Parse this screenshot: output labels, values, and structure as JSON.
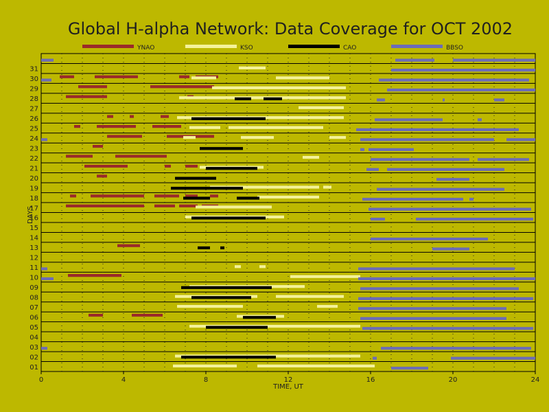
{
  "chart_data": {
    "type": "timeline",
    "title": "Global H-alpha Network: Data Coverage for OCT 2002",
    "xlabel": "TIME, UT",
    "ylabel": "DAYS",
    "xlim": [
      0,
      24
    ],
    "x_ticks": [
      0,
      4,
      8,
      12,
      16,
      20,
      24
    ],
    "day_labels": [
      "01",
      "02",
      "03",
      "04",
      "05",
      "06",
      "07",
      "08",
      "09",
      "10",
      "11",
      "12",
      "13",
      "14",
      "15",
      "16",
      "17",
      "18",
      "19",
      "20",
      "21",
      "22",
      "23",
      "24",
      "25",
      "26",
      "27",
      "28",
      "29",
      "30",
      "31"
    ],
    "grid": true,
    "legend_position": "top",
    "series": [
      {
        "name": "YNAO",
        "color": "#9a2a2a",
        "coverage": {
          "6": [
            [
              2.3,
              3.0
            ],
            [
              4.4,
              5.9
            ]
          ],
          "10": [
            [
              1.3,
              3.9
            ]
          ],
          "13": [
            [
              3.7,
              4.8
            ]
          ],
          "17": [
            [
              1.2,
              5.0
            ],
            [
              5.5,
              6.5
            ],
            [
              6.7,
              7.6
            ],
            [
              7.8,
              8.6
            ]
          ],
          "18": [
            [
              1.4,
              1.7
            ],
            [
              2.4,
              5.0
            ],
            [
              5.5,
              6.7
            ],
            [
              7.0,
              7.6
            ],
            [
              8.2,
              8.6
            ]
          ],
          "20": [
            [
              2.7,
              3.2
            ]
          ],
          "21": [
            [
              2.1,
              4.2
            ],
            [
              6.0,
              6.3
            ],
            [
              7.0,
              7.6
            ]
          ],
          "22": [
            [
              1.2,
              2.5
            ],
            [
              3.6,
              6.1
            ]
          ],
          "23": [
            [
              2.5,
              3.0
            ]
          ],
          "24": [
            [
              3.2,
              4.9
            ],
            [
              6.1,
              8.4
            ]
          ],
          "25": [
            [
              1.6,
              1.9
            ],
            [
              2.7,
              4.6
            ],
            [
              5.4,
              6.8
            ]
          ],
          "26": [
            [
              3.2,
              3.5
            ],
            [
              4.3,
              4.5
            ],
            [
              5.8,
              6.2
            ]
          ],
          "28": [
            [
              1.2,
              3.2
            ],
            [
              7.1,
              7.4
            ]
          ],
          "29": [
            [
              1.8,
              3.2
            ],
            [
              5.3,
              8.4
            ]
          ],
          "30": [
            [
              0.9,
              1.6
            ],
            [
              2.6,
              4.7
            ],
            [
              6.7,
              7.2
            ],
            [
              7.5,
              8.6
            ]
          ]
        }
      },
      {
        "name": "KSO",
        "color": "#f4f29a",
        "coverage": {
          "1": [
            [
              6.4,
              9.5
            ],
            [
              10.5,
              16.2
            ]
          ],
          "2": [
            [
              6.5,
              15.5
            ]
          ],
          "5": [
            [
              7.2,
              15.5
            ]
          ],
          "6": [
            [
              9.5,
              11.8
            ]
          ],
          "7": [
            [
              6.6,
              9.8
            ],
            [
              13.4,
              14.4
            ]
          ],
          "8": [
            [
              6.5,
              10.5
            ],
            [
              11.4,
              14.7
            ]
          ],
          "9": [
            [
              7.2,
              12.8
            ]
          ],
          "10": [
            [
              12.1,
              15.5
            ]
          ],
          "11": [
            [
              9.4,
              9.7
            ],
            [
              10.6,
              10.9
            ]
          ],
          "16": [
            [
              7.0,
              11.8
            ]
          ],
          "17": [
            [
              7.5,
              11.2
            ]
          ],
          "18": [
            [
              10.5,
              13.5
            ]
          ],
          "19": [
            [
              8.2,
              13.5
            ],
            [
              13.7,
              14.1
            ]
          ],
          "21": [
            [
              7.7,
              10.8
            ]
          ],
          "22": [
            [
              12.7,
              13.5
            ]
          ],
          "24": [
            [
              6.9,
              7.5
            ],
            [
              9.7,
              11.3
            ],
            [
              14.0,
              14.8
            ]
          ],
          "25": [
            [
              7.2,
              8.7
            ],
            [
              9.1,
              13.7
            ]
          ],
          "26": [
            [
              6.6,
              14.7
            ]
          ],
          "27": [
            [
              12.5,
              14.7
            ]
          ],
          "28": [
            [
              6.7,
              14.8
            ]
          ],
          "29": [
            [
              8.3,
              14.8
            ]
          ],
          "30": [
            [
              7.3,
              8.5
            ],
            [
              11.4,
              14.0
            ]
          ],
          "31": [
            [
              9.6,
              10.9
            ]
          ]
        }
      },
      {
        "name": "CAO",
        "color": "#000000",
        "coverage": {
          "2": [
            [
              6.8,
              11.4
            ]
          ],
          "5": [
            [
              8.0,
              11.0
            ]
          ],
          "6": [
            [
              9.8,
              11.4
            ]
          ],
          "8": [
            [
              7.3,
              10.2
            ]
          ],
          "9": [
            [
              6.8,
              11.2
            ]
          ],
          "13": [
            [
              7.6,
              8.2
            ],
            [
              8.7,
              8.9
            ]
          ],
          "16": [
            [
              7.3,
              10.9
            ]
          ],
          "18": [
            [
              6.9,
              8.2
            ],
            [
              9.5,
              10.6
            ]
          ],
          "19": [
            [
              6.3,
              9.8
            ]
          ],
          "20": [
            [
              6.5,
              8.5
            ]
          ],
          "21": [
            [
              8.0,
              10.5
            ]
          ],
          "23": [
            [
              7.7,
              9.8
            ]
          ],
          "26": [
            [
              7.3,
              10.9
            ]
          ],
          "28": [
            [
              9.4,
              10.2
            ],
            [
              10.8,
              11.7
            ]
          ]
        }
      },
      {
        "name": "BBSO",
        "color": "#6c6cb8",
        "coverage": {
          "1": [
            [
              17.0,
              18.8
            ]
          ],
          "2": [
            [
              16.1,
              16.3
            ],
            [
              19.9,
              24.0
            ]
          ],
          "3": [
            [
              0.0,
              0.3
            ],
            [
              16.5,
              23.8
            ]
          ],
          "5": [
            [
              15.6,
              23.9
            ]
          ],
          "6": [
            [
              15.5,
              22.6
            ]
          ],
          "7": [
            [
              15.4,
              22.6
            ]
          ],
          "8": [
            [
              15.4,
              23.9
            ]
          ],
          "9": [
            [
              15.5,
              23.2
            ]
          ],
          "10": [
            [
              0.0,
              0.6
            ],
            [
              15.4,
              24.0
            ]
          ],
          "11": [
            [
              0.0,
              0.3
            ],
            [
              15.4,
              23.0
            ]
          ],
          "13": [
            [
              19.0,
              20.8
            ]
          ],
          "14": [
            [
              16.0,
              21.7
            ]
          ],
          "16": [
            [
              16.0,
              16.7
            ],
            [
              18.2,
              23.9
            ]
          ],
          "17": [
            [
              15.9,
              23.8
            ]
          ],
          "18": [
            [
              15.6,
              20.5
            ],
            [
              20.8,
              21.0
            ]
          ],
          "19": [
            [
              16.3,
              22.5
            ]
          ],
          "20": [
            [
              19.2,
              20.8
            ]
          ],
          "21": [
            [
              15.8,
              16.4
            ],
            [
              16.8,
              22.5
            ]
          ],
          "22": [
            [
              16.0,
              20.8
            ],
            [
              21.2,
              23.7
            ]
          ],
          "23": [
            [
              15.5,
              15.7
            ],
            [
              15.9,
              18.1
            ]
          ],
          "24": [
            [
              0.0,
              0.3
            ],
            [
              15.5,
              22.0
            ],
            [
              22.6,
              24.0
            ]
          ],
          "25": [
            [
              15.3,
              23.2
            ]
          ],
          "26": [
            [
              16.2,
              19.5
            ],
            [
              21.2,
              21.4
            ]
          ],
          "28": [
            [
              16.3,
              16.7
            ],
            [
              19.5,
              19.6
            ],
            [
              22.0,
              22.5
            ]
          ],
          "29": [
            [
              16.8,
              24.0
            ]
          ],
          "30": [
            [
              0.0,
              0.5
            ],
            [
              16.4,
              23.7
            ]
          ],
          "31": [
            [
              17.0,
              24.0
            ]
          ],
          "32": [
            [
              0.0,
              0.6
            ],
            [
              17.2,
              19.1
            ],
            [
              20.0,
              24.0
            ]
          ]
        }
      }
    ]
  }
}
